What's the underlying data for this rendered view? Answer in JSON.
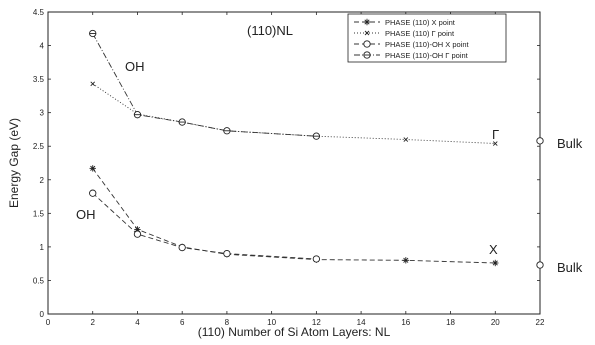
{
  "chart_data": {
    "type": "line",
    "title": "",
    "xlabel": "(110) Number of Si Atom Layers: NL",
    "ylabel": "Energy Gap (eV)",
    "xlim": [
      0,
      22
    ],
    "ylim": [
      0,
      4.5
    ],
    "xticks": [
      "0",
      "2",
      "4",
      "6",
      "8",
      "10",
      "12",
      "14",
      "16",
      "18",
      "20",
      "22"
    ],
    "yticks": [
      "0",
      "0.5",
      "1",
      "1.5",
      "2",
      "2.5",
      "3",
      "3.5",
      "4",
      "4.5"
    ],
    "grid": false,
    "legend": "top-right",
    "series": [
      {
        "name": "PHASE (110) X point",
        "marker": "asterisk",
        "dash": "dashed",
        "x": [
          2,
          4,
          6,
          8,
          12,
          16,
          20
        ],
        "y": [
          2.17,
          1.26,
          1.0,
          0.89,
          0.81,
          0.8,
          0.76
        ]
      },
      {
        "name": "PHASE (110) Γ point",
        "marker": "x",
        "dash": "dotted",
        "x": [
          2,
          4,
          6,
          8,
          12,
          16,
          20
        ],
        "y": [
          3.43,
          2.98,
          2.86,
          2.73,
          2.65,
          2.6,
          2.54
        ]
      },
      {
        "name": "PHASE (110)-OH X point",
        "marker": "circle",
        "dash": "dashed",
        "x": [
          2,
          4,
          6,
          8,
          12
        ],
        "y": [
          1.8,
          1.19,
          0.99,
          0.9,
          0.82
        ]
      },
      {
        "name": "PHASE (110)-OH Γ point",
        "marker": "circle-bar",
        "dash": "dashdot",
        "x": [
          2,
          4,
          6,
          8,
          12
        ],
        "y": [
          4.18,
          2.97,
          2.86,
          2.73,
          2.65
        ]
      }
    ],
    "bulk_points": [
      {
        "x": 22,
        "y": 2.58,
        "label": "Bulk"
      },
      {
        "x": 22,
        "y": 0.73,
        "label": "Bulk"
      }
    ],
    "annotations": {
      "title_inset": "(110)NL",
      "oh_upper": "OH",
      "oh_lower": "OH",
      "gamma": "Γ",
      "x_point": "X"
    }
  }
}
